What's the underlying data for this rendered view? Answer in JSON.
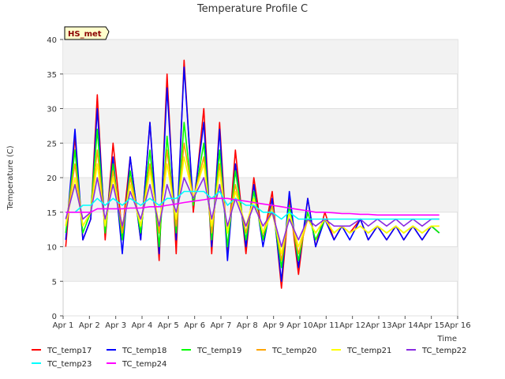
{
  "chart_data": {
    "type": "line",
    "title": "Temperature Profile C",
    "xlabel": "Time",
    "ylabel": "Temperature (C)",
    "ylim": [
      0,
      40
    ],
    "xlim": [
      1,
      16
    ],
    "y_ticks": [
      0,
      5,
      10,
      15,
      20,
      25,
      30,
      35,
      40
    ],
    "x_ticks": [
      1,
      2,
      3,
      4,
      5,
      6,
      7,
      8,
      9,
      10,
      11,
      12,
      13,
      14,
      15,
      16
    ],
    "x_tick_labels": [
      "Apr 1",
      "Apr 2",
      "Apr 3",
      "Apr 4",
      "Apr 5",
      "Apr 6",
      "Apr 7",
      "Apr 8",
      "Apr 9",
      "Apr 10",
      "Apr 11",
      "Apr 12",
      "Apr 13",
      "Apr 14",
      "Apr 15",
      "Apr 16"
    ],
    "grid": true,
    "legend_position": "bottom",
    "annotation": "HS_met",
    "x": [
      1.1,
      1.45,
      1.75,
      2.05,
      2.3,
      2.6,
      2.9,
      3.25,
      3.55,
      3.95,
      4.3,
      4.65,
      4.95,
      5.3,
      5.6,
      5.95,
      6.35,
      6.65,
      6.95,
      7.25,
      7.55,
      7.95,
      8.25,
      8.6,
      8.95,
      9.3,
      9.6,
      9.95,
      10.3,
      10.6,
      10.95,
      11.3,
      11.6,
      11.9,
      12.3,
      12.6,
      12.95,
      13.3,
      13.65,
      13.95,
      14.3,
      14.65,
      15.0,
      15.3
    ],
    "series": [
      {
        "name": "TC_temp17",
        "color": "#ff0000",
        "values": [
          10,
          26,
          11,
          14,
          32,
          11,
          25,
          12,
          23,
          11,
          28,
          8,
          35,
          9,
          37,
          15,
          30,
          9,
          28,
          9,
          24,
          9,
          20,
          11,
          18,
          4,
          17,
          6,
          17,
          10,
          15,
          11,
          13,
          12,
          14,
          11,
          13,
          11,
          13,
          11,
          13,
          11,
          13,
          12
        ]
      },
      {
        "name": "TC_temp18",
        "color": "#0000ff",
        "values": [
          11,
          27,
          11,
          14,
          30,
          12,
          23,
          9,
          23,
          11,
          28,
          9,
          33,
          11,
          36,
          16,
          28,
          10,
          27,
          8,
          22,
          10,
          19,
          10,
          17,
          5,
          18,
          7,
          17,
          10,
          14,
          11,
          13,
          11,
          14,
          11,
          13,
          11,
          13,
          11,
          13,
          11,
          13,
          12
        ]
      },
      {
        "name": "TC_temp19",
        "color": "#00ff00",
        "values": [
          12,
          24,
          12,
          15,
          27,
          12,
          22,
          11,
          21,
          12,
          24,
          10,
          26,
          12,
          28,
          16,
          25,
          11,
          24,
          10,
          21,
          11,
          18,
          11,
          16,
          7,
          16,
          8,
          15,
          11,
          14,
          12,
          13,
          12,
          13,
          12,
          13,
          12,
          13,
          12,
          13,
          12,
          13,
          12
        ]
      },
      {
        "name": "TC_temp20",
        "color": "#ffa500",
        "values": [
          13,
          22,
          13,
          15,
          24,
          13,
          21,
          12,
          20,
          13,
          22,
          12,
          24,
          13,
          25,
          17,
          23,
          12,
          22,
          12,
          19,
          12,
          17,
          12,
          16,
          8,
          15,
          9,
          14,
          12,
          14,
          12,
          13,
          12,
          13,
          12,
          13,
          12,
          13,
          12,
          13,
          12,
          13,
          13
        ]
      },
      {
        "name": "TC_temp21",
        "color": "#ffff00",
        "values": [
          13,
          20,
          13,
          15,
          22,
          13,
          20,
          13,
          19,
          13,
          21,
          13,
          22,
          14,
          23,
          17,
          22,
          13,
          21,
          12,
          18,
          13,
          17,
          12,
          15,
          9,
          15,
          10,
          14,
          12,
          14,
          12,
          13,
          12,
          13,
          12,
          13,
          12,
          13,
          12,
          13,
          12,
          13,
          13
        ]
      },
      {
        "name": "TC_temp22",
        "color": "#8a2be2",
        "values": [
          14,
          19,
          14,
          15,
          20,
          14,
          19,
          13,
          18,
          14,
          19,
          13,
          19,
          15,
          20,
          17,
          20,
          14,
          19,
          13,
          17,
          13,
          16,
          13,
          15,
          10,
          14,
          11,
          14,
          13,
          14,
          13,
          13,
          13,
          14,
          13,
          14,
          13,
          14,
          13,
          14,
          13,
          14,
          14
        ]
      },
      {
        "name": "TC_temp23",
        "color": "#00ffff",
        "values": [
          15,
          15,
          16,
          16,
          17,
          16,
          17,
          16,
          17,
          16,
          17,
          16,
          17,
          17,
          18,
          18,
          18,
          17,
          18,
          16,
          17,
          16,
          16,
          15,
          15,
          14,
          15,
          14,
          14,
          14,
          14,
          14,
          14,
          14,
          14,
          14,
          14,
          14,
          14,
          14,
          14,
          14,
          14,
          14
        ]
      },
      {
        "name": "TC_temp24",
        "color": "#ff00ff",
        "values": [
          15,
          15,
          15,
          15,
          15.5,
          15.5,
          15.5,
          15.5,
          15.6,
          15.6,
          15.8,
          15.8,
          16,
          16.2,
          16.4,
          16.6,
          16.8,
          17,
          17,
          17,
          16.8,
          16.6,
          16.4,
          16.2,
          16,
          15.8,
          15.6,
          15.4,
          15.2,
          15,
          15,
          14.9,
          14.8,
          14.8,
          14.7,
          14.7,
          14.6,
          14.6,
          14.6,
          14.6,
          14.6,
          14.6,
          14.6,
          14.6
        ]
      }
    ]
  }
}
